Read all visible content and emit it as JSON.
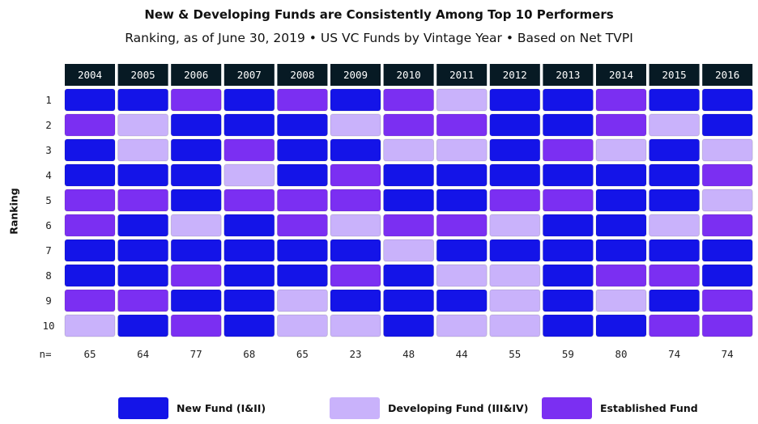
{
  "chart_data": {
    "type": "heatmap",
    "title": "New & Developing Funds are Consistently Among Top 10 Performers",
    "subtitle": "Ranking, as of June 30, 2019 • US VC Funds by Vintage Year • Based on Net TVPI",
    "ylabel": "Ranking",
    "categories": [
      "2004",
      "2005",
      "2006",
      "2007",
      "2008",
      "2009",
      "2010",
      "2011",
      "2012",
      "2013",
      "2014",
      "2015",
      "2016"
    ],
    "ranks": [
      "1",
      "2",
      "3",
      "4",
      "5",
      "6",
      "7",
      "8",
      "9",
      "10"
    ],
    "n_label": "n=",
    "n_values": [
      "65",
      "64",
      "77",
      "68",
      "65",
      "23",
      "48",
      "44",
      "55",
      "59",
      "80",
      "74",
      "74"
    ],
    "legend": [
      {
        "key": "N",
        "label": "New Fund (I&II)",
        "color": "#1414e8"
      },
      {
        "key": "D",
        "label": "Developing Fund (III&IV)",
        "color": "#c9b2fb"
      },
      {
        "key": "E",
        "label": "Established Fund",
        "color": "#7b2ff2"
      }
    ],
    "grid": [
      [
        "N",
        "N",
        "E",
        "N",
        "E",
        "N",
        "E",
        "D",
        "N",
        "N",
        "E",
        "N",
        "N"
      ],
      [
        "E",
        "D",
        "N",
        "N",
        "N",
        "D",
        "E",
        "E",
        "N",
        "N",
        "E",
        "D",
        "N"
      ],
      [
        "N",
        "D",
        "N",
        "E",
        "N",
        "N",
        "D",
        "D",
        "N",
        "E",
        "D",
        "N",
        "D"
      ],
      [
        "N",
        "N",
        "N",
        "D",
        "N",
        "E",
        "N",
        "N",
        "N",
        "N",
        "N",
        "N",
        "E"
      ],
      [
        "E",
        "E",
        "N",
        "E",
        "E",
        "E",
        "N",
        "N",
        "E",
        "E",
        "N",
        "N",
        "D"
      ],
      [
        "E",
        "N",
        "D",
        "N",
        "E",
        "D",
        "E",
        "E",
        "D",
        "N",
        "N",
        "D",
        "E"
      ],
      [
        "N",
        "N",
        "N",
        "N",
        "N",
        "N",
        "D",
        "N",
        "N",
        "N",
        "N",
        "N",
        "N"
      ],
      [
        "N",
        "N",
        "E",
        "N",
        "N",
        "E",
        "N",
        "D",
        "D",
        "N",
        "E",
        "E",
        "N"
      ],
      [
        "E",
        "E",
        "N",
        "N",
        "D",
        "N",
        "N",
        "N",
        "D",
        "N",
        "D",
        "N",
        "E"
      ],
      [
        "D",
        "N",
        "E",
        "N",
        "D",
        "D",
        "N",
        "D",
        "D",
        "N",
        "N",
        "E",
        "E"
      ]
    ]
  }
}
